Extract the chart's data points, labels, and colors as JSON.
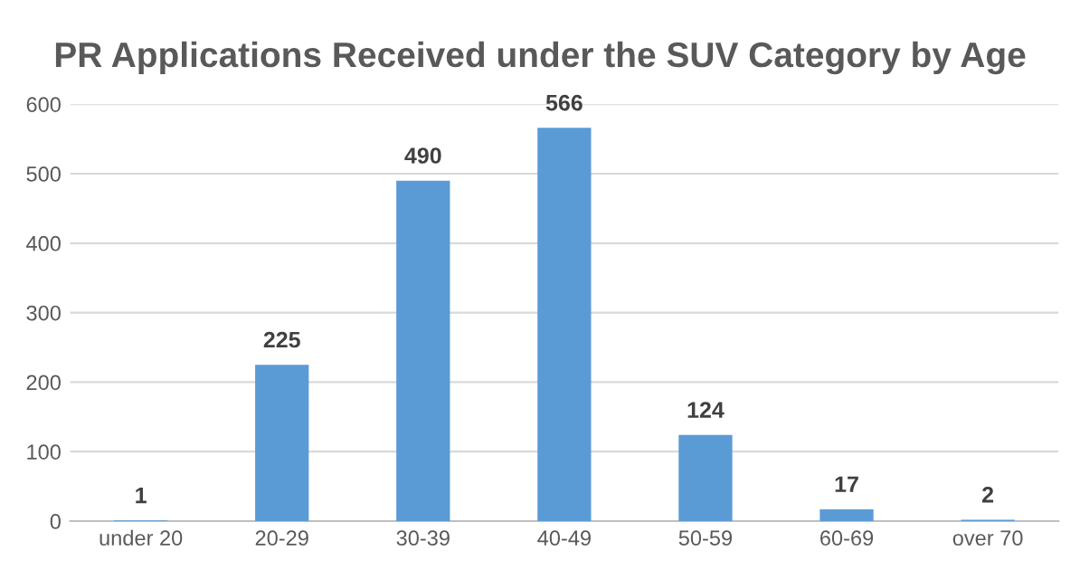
{
  "chart_data": {
    "type": "bar",
    "title": "PR Applications Received under the SUV Category by Age",
    "categories": [
      "under 20",
      "20-29",
      "30-39",
      "40-49",
      "50-59",
      "60-69",
      "over 70"
    ],
    "values": [
      1,
      225,
      490,
      566,
      124,
      17,
      2
    ],
    "color": "#5b9bd5",
    "ylim": [
      0,
      600
    ],
    "yticks": [
      0,
      100,
      200,
      300,
      400,
      500,
      600
    ],
    "grid": "y",
    "data_labels": true
  }
}
